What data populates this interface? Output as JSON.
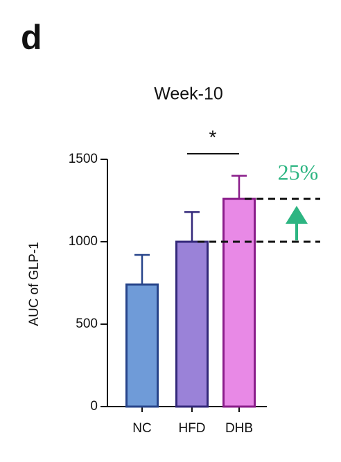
{
  "panel_label": "d",
  "chart_data": {
    "type": "bar",
    "title": "Week-10",
    "ylabel": "AUC of GLP-1",
    "categories": [
      "NC",
      "HFD",
      "DHB"
    ],
    "values": [
      740,
      1000,
      1260
    ],
    "errors": [
      180,
      180,
      140
    ],
    "colors": [
      "#6f9bd8",
      "#9a82d8",
      "#e889e6"
    ],
    "edgecolors": [
      "#27448a",
      "#33287a",
      "#8a1d8a"
    ],
    "ylim": [
      0,
      1500
    ],
    "yticks": [
      0,
      500,
      1000,
      1500
    ],
    "significance": "*",
    "annotation": "25%",
    "annotation_color": "#2db582"
  }
}
